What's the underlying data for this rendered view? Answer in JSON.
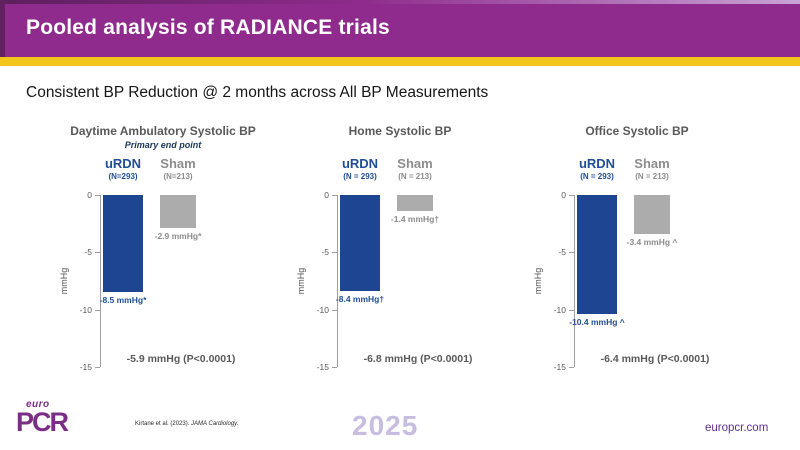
{
  "colors": {
    "header_purple": "#8e2b8c",
    "accent_yellow": "#f3c51a",
    "bar_blue": "#1e4591",
    "bar_gray": "#acacac",
    "urdn_text": "#1f4e96",
    "sham_text": "#8c8c8c",
    "title_gray": "#595959",
    "note_navy": "#17365d",
    "brand_purple": "#7b2e85",
    "watermark": "#c7bde1"
  },
  "header": {
    "title": "Pooled analysis of RADIANCE trials"
  },
  "subtitle": "Consistent BP Reduction @ 2 months across All BP Measurements",
  "chart_data": [
    {
      "type": "bar",
      "title": "Daytime Ambulatory Systolic BP",
      "note": "Primary end point",
      "ylabel": "mmHg",
      "ylim": [
        -15,
        0
      ],
      "yticks": [
        0,
        -5,
        -10,
        -15
      ],
      "categories": [
        "uRDN",
        "Sham"
      ],
      "category_sublabels": [
        "(N=293)",
        "(N=213)"
      ],
      "values": [
        -8.5,
        -2.9
      ],
      "bar_labels": [
        "-8.5 mmHg*",
        "-2.9 mmHg*"
      ],
      "difference_label": "-5.9 mmHg (P<0.0001)"
    },
    {
      "type": "bar",
      "title": "Home Systolic BP",
      "note": "",
      "ylabel": "mmHg",
      "ylim": [
        -15,
        0
      ],
      "yticks": [
        0,
        -5,
        -10,
        -15
      ],
      "categories": [
        "uRDN",
        "Sham"
      ],
      "category_sublabels": [
        "(N = 293)",
        "(N = 213)"
      ],
      "values": [
        -8.4,
        -1.4
      ],
      "bar_labels": [
        "-8.4 mmHg†",
        "-1.4 mmHg†"
      ],
      "difference_label": "-6.8 mmHg (P<0.0001)"
    },
    {
      "type": "bar",
      "title": "Office Systolic BP",
      "note": "",
      "ylabel": "mmHg",
      "ylim": [
        -15,
        0
      ],
      "yticks": [
        0,
        -5,
        -10,
        -15
      ],
      "categories": [
        "uRDN",
        "Sham"
      ],
      "category_sublabels": [
        "(N = 293)",
        "(N = 213)"
      ],
      "values": [
        -10.4,
        -3.4
      ],
      "bar_labels": [
        "-10.4 mmHg ^",
        "-3.4 mmHg ^"
      ],
      "difference_label": "-6.4 mmHg (P<0.0001)"
    }
  ],
  "footer": {
    "logo_top": "euro",
    "logo_main": "PCR",
    "citation_text": "Kirtane et al. (2023).",
    "citation_journal": "JAMA Cardiology.",
    "year": "2025",
    "website": "europcr.com"
  }
}
